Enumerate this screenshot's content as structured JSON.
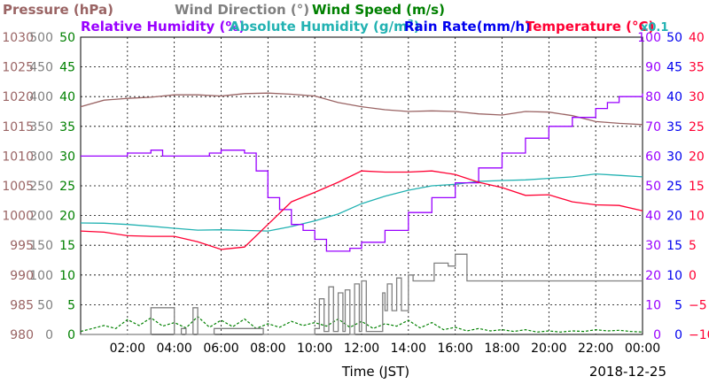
{
  "chart_data": {
    "type": "line",
    "date": "2018-12-25",
    "xlabel": "Time (JST)",
    "x_ticks": [
      "02:00",
      "04:00",
      "06:00",
      "08:00",
      "10:00",
      "12:00",
      "14:00",
      "16:00",
      "18:00",
      "20:00",
      "22:00",
      "00:00"
    ],
    "legend": [
      {
        "name": "Pressure (hPa)",
        "color": "#9a6464"
      },
      {
        "name": "Wind Direction (°)",
        "color": "#808080"
      },
      {
        "name": "Wind Speed (m/s)",
        "color": "#008000"
      },
      {
        "name": "Relative Humidity (%)",
        "color": "#9900ff"
      },
      {
        "name": "Absolute Humidity (g/m",
        "sup": "3",
        "close": ")",
        "color": "#22b2b2"
      },
      {
        "name": "Rain Rate(mm/h)",
        "color": "#0000ee"
      },
      {
        "name": "Temperature (°C)",
        "color": "#ff0033"
      },
      {
        "name": "x0.1",
        "color": "#22b2b2"
      }
    ],
    "axes": {
      "pressure": {
        "ticks": [
          "1030",
          "1025",
          "1020",
          "1015",
          "1010",
          "1005",
          "1000",
          "995",
          "990",
          "985",
          "980"
        ],
        "range": [
          980,
          1030
        ],
        "color": "#9a6464"
      },
      "wind_direction": {
        "ticks": [
          "500",
          "450",
          "400",
          "350",
          "300",
          "250",
          "200",
          "150",
          "100",
          "50",
          "0"
        ],
        "range": [
          0,
          500
        ],
        "color": "#808080"
      },
      "wind_speed": {
        "ticks": [
          "50",
          "45",
          "40",
          "35",
          "30",
          "25",
          "20",
          "15",
          "10",
          "5",
          "0"
        ],
        "range": [
          0,
          50
        ],
        "color": "#008000"
      },
      "humidity": {
        "ticks": [
          "100",
          "90",
          "80",
          "70",
          "60",
          "50",
          "40",
          "30",
          "20",
          "10",
          "0"
        ],
        "range": [
          0,
          100
        ],
        "color": "#9900ff"
      },
      "rain": {
        "ticks": [
          "50",
          "45",
          "40",
          "35",
          "30",
          "25",
          "20",
          "15",
          "10",
          "5",
          "0"
        ],
        "range": [
          0,
          50
        ],
        "color": "#0000ee"
      },
      "temperature": {
        "ticks": [
          "40",
          "35",
          "30",
          "25",
          "20",
          "15",
          "10",
          "5",
          "0",
          "−5",
          "−10"
        ],
        "range": [
          -10,
          40
        ],
        "color": "#ff0033"
      }
    },
    "series": [
      {
        "name": "Pressure",
        "axis": "pressure",
        "color": "#9a6464",
        "x": [
          0,
          1,
          2,
          3,
          4,
          5,
          6,
          7,
          8,
          9,
          10,
          11,
          12,
          13,
          14,
          15,
          16,
          17,
          18,
          19,
          20,
          21,
          22,
          23,
          24
        ],
        "y": [
          1018.3,
          1019.4,
          1019.7,
          1019.9,
          1020.3,
          1020.3,
          1020.1,
          1020.5,
          1020.6,
          1020.4,
          1020.1,
          1019.0,
          1018.3,
          1017.8,
          1017.5,
          1017.6,
          1017.5,
          1017.1,
          1016.9,
          1017.5,
          1017.4,
          1016.8,
          1015.8,
          1015.5,
          1015.3
        ]
      },
      {
        "name": "Relative Humidity",
        "axis": "humidity",
        "color": "#9900ff",
        "x": [
          0,
          1,
          2,
          3,
          3.5,
          4,
          5,
          5.5,
          6,
          6.5,
          7,
          7.5,
          8,
          8.5,
          9,
          9.5,
          10,
          10.5,
          11,
          11.5,
          12,
          13,
          14,
          15,
          16,
          17,
          18,
          19,
          20,
          21,
          22,
          22.5,
          23,
          24
        ],
        "y": [
          60,
          60,
          61,
          62,
          60,
          60,
          60,
          61,
          62,
          62,
          61,
          55,
          46,
          42,
          37,
          35,
          32,
          28,
          28,
          29,
          31,
          35,
          41,
          46,
          51,
          56,
          61,
          66,
          70,
          73,
          76,
          78,
          80,
          81
        ]
      },
      {
        "name": "Absolute Humidity",
        "axis": "humidity",
        "color": "#22b2b2",
        "x": [
          0,
          1,
          2,
          3,
          4,
          5,
          6,
          7,
          8,
          9,
          10,
          11,
          12,
          13,
          14,
          15,
          16,
          17,
          18,
          19,
          20,
          21,
          22,
          23,
          24
        ],
        "y": [
          37.5,
          37.4,
          37,
          36.4,
          35.7,
          35.1,
          35.2,
          35,
          34.8,
          36.3,
          38.2,
          40.5,
          44,
          46.5,
          48.5,
          50,
          50.5,
          51.5,
          51.8,
          52,
          52.5,
          53,
          54,
          53.5,
          53
        ]
      },
      {
        "name": "Temperature",
        "axis": "temperature",
        "color": "#ff0033",
        "x": [
          0,
          1,
          2,
          3,
          4,
          5,
          6,
          7,
          8,
          9,
          10,
          11,
          12,
          13,
          14,
          15,
          16,
          17,
          18,
          19,
          20,
          21,
          22,
          23,
          24
        ],
        "y": [
          7.4,
          7.2,
          6.6,
          6.5,
          6.5,
          5.6,
          4.3,
          4.7,
          8.5,
          12.3,
          13.9,
          15.6,
          17.5,
          17.3,
          17.3,
          17.5,
          16.9,
          15.6,
          14.7,
          13.4,
          13.5,
          12.3,
          11.8,
          11.7,
          10.8
        ]
      },
      {
        "name": "Wind Direction",
        "axis": "wind_direction",
        "color": "#808080",
        "x": [
          0,
          2.2,
          2.5,
          3.0,
          3.1,
          3.9,
          4.0,
          4.3,
          4.5,
          4.8,
          5.0,
          5.5,
          5.7,
          7.8,
          8.0,
          9.5,
          10.0,
          10.2,
          10.4,
          10.6,
          10.8,
          11.0,
          11.2,
          11.3,
          11.5,
          11.7,
          11.9,
          12.0,
          12.2,
          12.6,
          12.9,
          13.0,
          13.1,
          13.3,
          13.5,
          13.7,
          14.0,
          14.2,
          14.5,
          14.9,
          15.1,
          15.5,
          15.7,
          16.0,
          16.5,
          17.0,
          24.0
        ],
        "y": [
          0,
          0,
          0,
          45,
          45,
          45,
          0,
          10,
          0,
          45,
          0,
          0,
          10,
          0,
          0,
          0,
          10,
          60,
          5,
          80,
          5,
          70,
          5,
          75,
          0,
          85,
          5,
          90,
          5,
          5,
          70,
          40,
          85,
          40,
          95,
          40,
          100,
          90,
          90,
          90,
          120,
          120,
          115,
          135,
          90,
          90,
          90
        ]
      },
      {
        "name": "Wind Speed",
        "axis": "wind_speed",
        "color": "#008000",
        "x": [
          0,
          0.5,
          1,
          1.5,
          2,
          2.5,
          3,
          3.5,
          4,
          4.5,
          5,
          5.5,
          6,
          6.5,
          7,
          7.5,
          8,
          8.5,
          9,
          9.5,
          10,
          10.5,
          11,
          11.5,
          12,
          12.5,
          13,
          13.5,
          14,
          14.5,
          15,
          15.5,
          16,
          16.5,
          17,
          17.5,
          18,
          18.5,
          19,
          19.5,
          20,
          20.5,
          21,
          21.5,
          22,
          22.5,
          23,
          23.5,
          24
        ],
        "y": [
          0.5,
          1.0,
          1.5,
          1.0,
          2.5,
          1.5,
          2.8,
          1.4,
          2.0,
          1.1,
          3.0,
          1.2,
          2.4,
          1.3,
          2.6,
          1.0,
          1.8,
          1.2,
          2.2,
          1.5,
          2.0,
          1.4,
          2.6,
          1.2,
          2.2,
          1.0,
          1.8,
          1.4,
          2.4,
          1.1,
          2.0,
          0.8,
          1.2,
          0.6,
          1.0,
          0.6,
          0.8,
          0.5,
          0.8,
          0.4,
          0.6,
          0.4,
          0.6,
          0.5,
          0.8,
          0.6,
          0.7,
          0.5,
          0.4
        ]
      }
    ]
  }
}
